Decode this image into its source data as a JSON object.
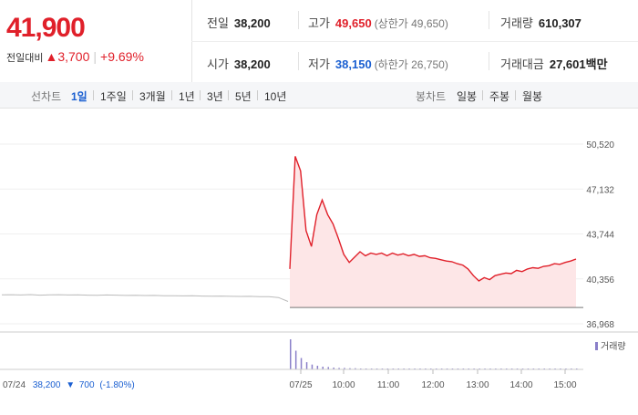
{
  "quote": {
    "price": "41,900",
    "change_label": "전일대비",
    "change_arrow": "▲",
    "change_amount": "3,700",
    "change_percent": "+9.69%"
  },
  "stats": {
    "prev_close_label": "전일",
    "prev_close": "38,200",
    "high_label": "고가",
    "high": "49,650",
    "upper_limit": "(상한가 49,650)",
    "volume_label": "거래량",
    "volume": "610,307",
    "open_label": "시가",
    "open": "38,200",
    "low_label": "저가",
    "low": "38,150",
    "lower_limit": "(하한가 26,750)",
    "amount_label": "거래대금",
    "amount": "27,601",
    "amount_unit": "백만"
  },
  "tabs": {
    "line_chart_label": "선차트",
    "line_items": [
      "1일",
      "1주일",
      "3개월",
      "1년",
      "3년",
      "5년",
      "10년"
    ],
    "active_index": 0,
    "candle_chart_label": "봉차트",
    "candle_items": [
      "일봉",
      "주봉",
      "월봉"
    ]
  },
  "colors": {
    "up": "#e0202a",
    "down": "#1a5fd1",
    "area_fill": "#fde6e7",
    "prev_line": "#bbbbbb",
    "volume_bar": "#8a7fc9"
  },
  "chart_data": {
    "type": "line",
    "ylim": [
      36968,
      50520
    ],
    "y_ticks": [
      "50,520",
      "47,132",
      "43,744",
      "40,356",
      "36,968"
    ],
    "y_tick_values": [
      50520,
      47132,
      43744,
      40356,
      36968
    ],
    "x_ticks": [
      "07/24",
      "07/25",
      "10:00",
      "11:00",
      "12:00",
      "13:00",
      "14:00",
      "15:00"
    ],
    "prev_day_summary": {
      "date": "07/24",
      "close": "38,200",
      "arrow": "▼",
      "change": "700",
      "percent": "(-1.80%)"
    },
    "prev_day_values": [
      39150,
      39160,
      39140,
      39170,
      39130,
      39150,
      39160,
      39140,
      39150,
      39130,
      39120,
      39140,
      39130,
      39110,
      39120,
      39100,
      39110,
      39080,
      39090,
      39070,
      39080,
      39060,
      39050,
      39060,
      39040,
      39030,
      39040,
      39020,
      39010,
      38950,
      38650
    ],
    "today_values": [
      41100,
      49600,
      48500,
      44000,
      42800,
      45200,
      46300,
      45200,
      44500,
      43400,
      42200,
      41600,
      42000,
      42400,
      42100,
      42300,
      42200,
      42300,
      42100,
      42300,
      42150,
      42250,
      42100,
      42200,
      42050,
      42100,
      41950,
      41900,
      41800,
      41700,
      41650,
      41500,
      41400,
      41100,
      40600,
      40200,
      40450,
      40300,
      40600,
      40700,
      40800,
      40750,
      41000,
      40900,
      41100,
      41200,
      41150,
      41300,
      41350,
      41500,
      41450,
      41600,
      41700,
      41850
    ],
    "baseline": 38200,
    "volume_label": "거래량",
    "volume_values": [
      100,
      62,
      38,
      24,
      16,
      12,
      9,
      8,
      6,
      5,
      5,
      4,
      4,
      3,
      3,
      3,
      3,
      2,
      2,
      2,
      2,
      2,
      2,
      2,
      1,
      1,
      1,
      1,
      1,
      1,
      1,
      1,
      1,
      1,
      2,
      2,
      1,
      1,
      1,
      1,
      1,
      1,
      1,
      1,
      1,
      1,
      1,
      1,
      1,
      1,
      1,
      1,
      1,
      2
    ]
  }
}
